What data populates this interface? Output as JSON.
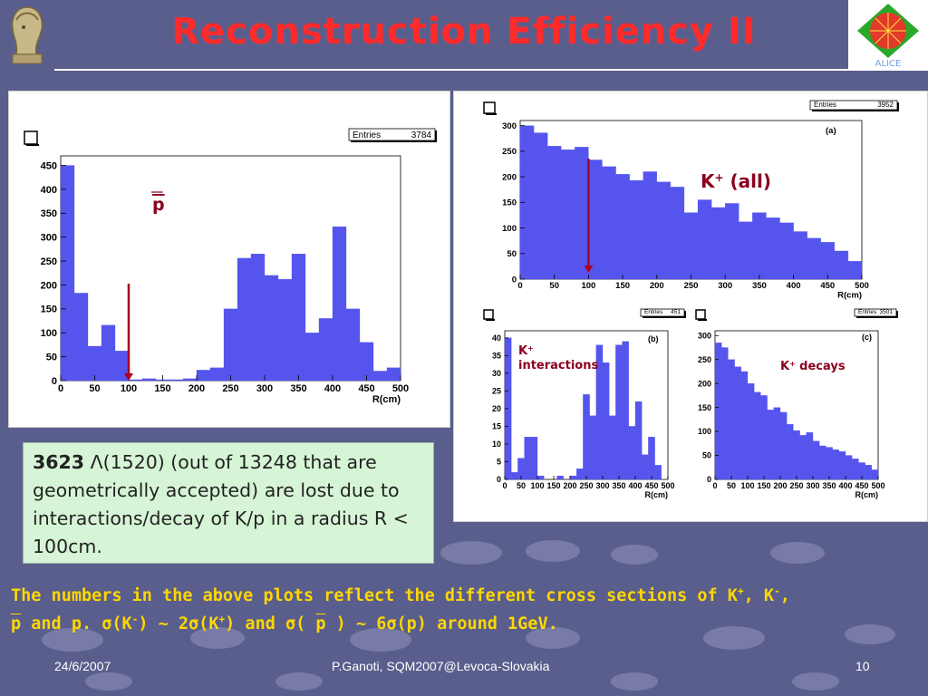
{
  "slide": {
    "title": "Reconstruction Efficiency II",
    "footer_date": "24/6/2007",
    "footer_center": "P.Ganoti, SQM2007@Levoca-Slovakia",
    "footer_page": "10",
    "logo_right_text": "ALICE",
    "colors": {
      "background": "#5a5e8c",
      "title": "#ff2a2a",
      "bars": "#5555ee",
      "arrow": "#aa0022",
      "highlight": "#ffd700",
      "textbox": "#d6f5d6"
    }
  },
  "textbox": {
    "count": "3623",
    "rest": "Λ(1520) (out of 13248 that are geometrically accepted) are lost due to interactions/decay of K/p in a radius R < 100cm."
  },
  "bottom_text": {
    "line1_a": "The numbers in the above plots reflect the different cross sections of K",
    "line1_b": ", K",
    "line1_c": ",",
    "line2_p": "p",
    "line2_a": " and p. σ(K",
    "line2_b": ") ~ 2σ(K",
    "line2_c": ") and σ( ",
    "line2_d": "p",
    "line2_e": " ) ~ 6σ(p) around 1GeV.",
    "sup_plus": "+",
    "sup_minus": "-"
  },
  "chart_data": [
    {
      "id": "pbar",
      "type": "bar",
      "annotation": "p",
      "annotation_overline": true,
      "entries_label": "Entries",
      "entries_value": "3784",
      "xlabel": "R(cm)",
      "xlim": [
        0,
        500
      ],
      "ylim": [
        0,
        470
      ],
      "xticks": [
        0,
        50,
        100,
        150,
        200,
        250,
        300,
        350,
        400,
        450,
        500
      ],
      "yticks": [
        0,
        50,
        100,
        150,
        200,
        250,
        300,
        350,
        400,
        450
      ],
      "bin_width": 20,
      "values": [
        450,
        183,
        72,
        116,
        62,
        2,
        4,
        2,
        2,
        4,
        22,
        27,
        150,
        256,
        265,
        220,
        212,
        265,
        100,
        130,
        322,
        150,
        80,
        20,
        27
      ],
      "arrow_x": 100
    },
    {
      "id": "kplus_all",
      "type": "bar",
      "label": "(a)",
      "annotation": "K",
      "annotation_sup": "+",
      "annotation_tail": " (all)",
      "entries_label": "Entries",
      "entries_value": "3952",
      "xlabel": "R(cm)",
      "xlim": [
        0,
        500
      ],
      "ylim": [
        0,
        310
      ],
      "xticks": [
        0,
        50,
        100,
        150,
        200,
        250,
        300,
        350,
        400,
        450,
        500
      ],
      "yticks": [
        0,
        50,
        100,
        150,
        200,
        250,
        300
      ],
      "bin_width": 20,
      "values": [
        300,
        286,
        260,
        253,
        258,
        233,
        220,
        205,
        193,
        210,
        190,
        180,
        130,
        155,
        140,
        148,
        112,
        130,
        120,
        110,
        93,
        80,
        72,
        55,
        35
      ],
      "arrow_x": 100
    },
    {
      "id": "kplus_interactions",
      "type": "bar",
      "label": "(b)",
      "annotation": "K",
      "annotation_sup": "+",
      "annotation_tail": "interactions",
      "entries_label": "Entries",
      "entries_value": "451",
      "xlabel": "R(cm)",
      "xlim": [
        0,
        500
      ],
      "ylim": [
        0,
        42
      ],
      "xticks": [
        0,
        50,
        100,
        150,
        200,
        250,
        300,
        350,
        400,
        450,
        500
      ],
      "yticks": [
        0,
        5,
        10,
        15,
        20,
        25,
        30,
        35,
        40
      ],
      "bin_width": 20,
      "values": [
        40,
        2,
        6,
        12,
        12,
        1,
        0,
        0,
        1,
        0,
        1,
        3,
        24,
        18,
        38,
        33,
        18,
        38,
        39,
        15,
        22,
        7,
        12,
        4,
        0
      ]
    },
    {
      "id": "kplus_decays",
      "type": "bar",
      "label": "(c)",
      "annotation": "K",
      "annotation_sup": "+",
      "annotation_tail": " decays",
      "entries_label": "Entries",
      "entries_value": "3501",
      "xlabel": "R(cm)",
      "xlim": [
        0,
        500
      ],
      "ylim": [
        0,
        310
      ],
      "xticks": [
        0,
        50,
        100,
        150,
        200,
        250,
        300,
        350,
        400,
        450,
        500
      ],
      "yticks": [
        0,
        50,
        100,
        150,
        200,
        250,
        300
      ],
      "bin_width": 20,
      "values": [
        285,
        275,
        250,
        235,
        225,
        200,
        182,
        175,
        145,
        150,
        140,
        115,
        102,
        92,
        98,
        80,
        70,
        67,
        62,
        58,
        50,
        43,
        35,
        30,
        20
      ]
    }
  ]
}
